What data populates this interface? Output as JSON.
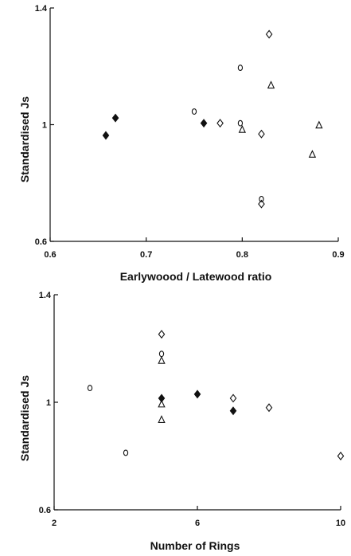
{
  "chart_data": [
    {
      "type": "scatter",
      "title": "",
      "xlabel": "Earlywoood / Latewood ratio",
      "ylabel": "Standardised Js",
      "xlim": [
        0.6,
        0.9
      ],
      "ylim": [
        0.6,
        1.4
      ],
      "xticks": [
        "0.6",
        "0.7",
        "0.8",
        "0.9"
      ],
      "yticks": [
        "0.6",
        "1",
        "1.4"
      ],
      "grid": false,
      "series": [
        {
          "marker": "filled-diamond",
          "x": [
            0.658,
            0.668,
            0.76
          ],
          "y": [
            0.963,
            1.023,
            1.005
          ]
        },
        {
          "marker": "open-circle",
          "x": [
            0.75,
            0.798,
            0.798,
            0.82
          ],
          "y": [
            1.045,
            1.195,
            1.005,
            0.745
          ]
        },
        {
          "marker": "open-diamond",
          "x": [
            0.777,
            0.82,
            0.828,
            0.82
          ],
          "y": [
            1.005,
            0.968,
            1.31,
            0.728
          ]
        },
        {
          "marker": "open-triangle",
          "x": [
            0.8,
            0.83,
            0.88,
            0.873
          ],
          "y": [
            0.983,
            1.135,
            0.998,
            0.898
          ]
        }
      ]
    },
    {
      "type": "scatter",
      "title": "",
      "xlabel": "Number of Rings",
      "ylabel": "Standardised Js",
      "xlim": [
        2,
        10
      ],
      "ylim": [
        0.6,
        1.4
      ],
      "xticks": [
        "2",
        "6",
        "10"
      ],
      "yticks": [
        "0.6",
        "1",
        "1.4"
      ],
      "grid": false,
      "series": [
        {
          "marker": "filled-diamond",
          "x": [
            5,
            6,
            7
          ],
          "y": [
            1.015,
            1.03,
            0.968
          ]
        },
        {
          "marker": "open-circle",
          "x": [
            3,
            4,
            5
          ],
          "y": [
            1.053,
            0.812,
            1.18
          ]
        },
        {
          "marker": "open-diamond",
          "x": [
            5,
            7,
            8,
            10
          ],
          "y": [
            1.253,
            1.015,
            0.98,
            0.8
          ]
        },
        {
          "marker": "open-triangle",
          "x": [
            5,
            5,
            5
          ],
          "y": [
            1.155,
            0.993,
            0.935
          ]
        }
      ]
    }
  ]
}
